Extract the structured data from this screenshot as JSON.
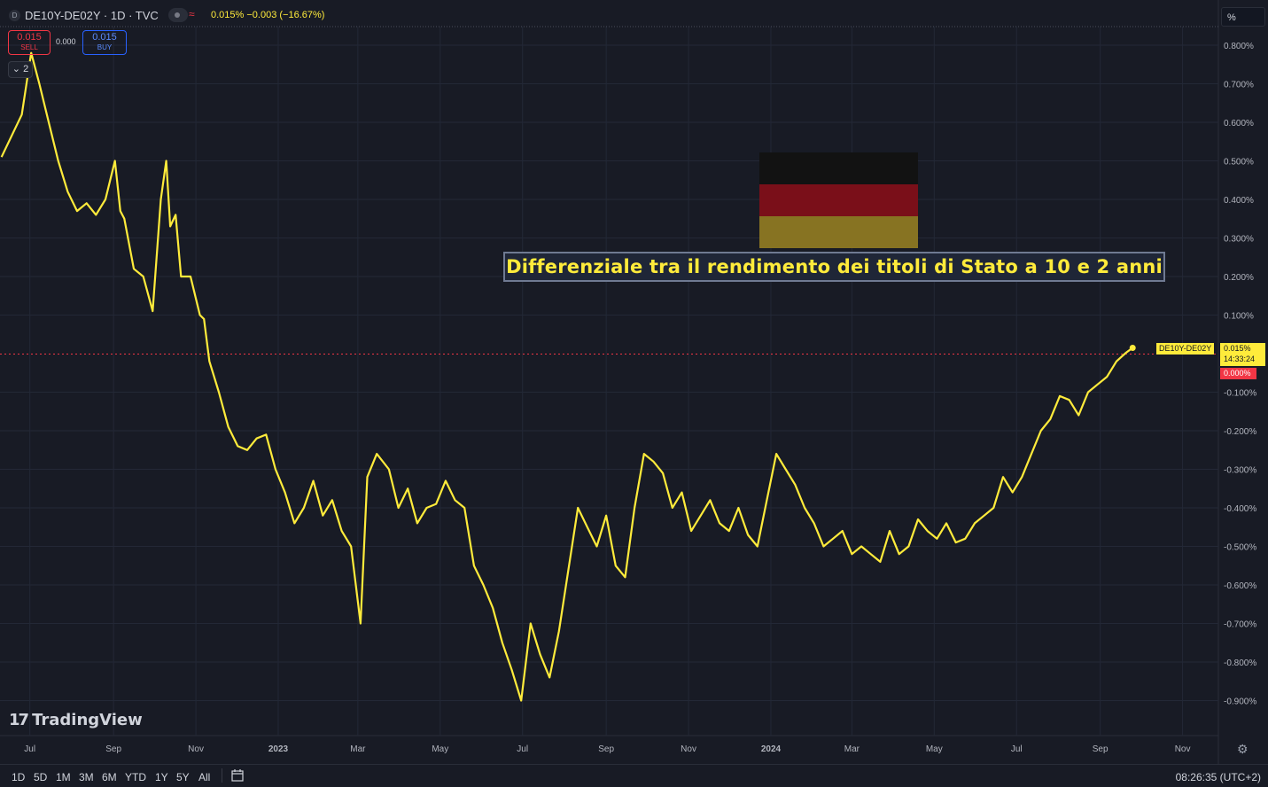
{
  "header": {
    "symbol_badge": "D",
    "symbol_title": "DE10Y-DE02Y · 1D · TVC",
    "ohlc": "0.015% −0.003 (−16.67%)",
    "eye_icon": "eye-icon",
    "wave_icon": "data-wave-icon"
  },
  "trade": {
    "sell_value": "0.015",
    "sell_label": "SELL",
    "spread": "0.000",
    "buy_value": "0.015",
    "buy_label": "BUY"
  },
  "collapse_label": "2",
  "unit_button": "%",
  "annotation": "Differenziale tra il rendimento dei titoli di Stato a 10 e 2 anni",
  "flag_colors": [
    "#121212",
    "#7a0f19",
    "#877322"
  ],
  "price_tags": {
    "symbol": "DE10Y-DE02Y",
    "price": "0.015%",
    "countdown": "14:33:24",
    "zero": "0.000%"
  },
  "logo": {
    "mark": "17",
    "text": "TradingView"
  },
  "bottom": {
    "ranges": [
      "1D",
      "5D",
      "1M",
      "3M",
      "6M",
      "YTD",
      "1Y",
      "5Y",
      "All"
    ],
    "clock": "08:26:35 (UTC+2)"
  },
  "colors": {
    "line": "#ffeb3b",
    "background": "#181b25",
    "grid": "#252a36",
    "sell": "#f23645",
    "buy": "#2962ff"
  },
  "chart_data": {
    "type": "line",
    "series": [
      {
        "name": "DE10Y-DE02Y",
        "x": [
          "2022-06-10",
          "2022-06-25",
          "2022-07-02",
          "2022-07-08",
          "2022-07-15",
          "2022-07-22",
          "2022-07-29",
          "2022-08-05",
          "2022-08-12",
          "2022-08-19",
          "2022-08-26",
          "2022-09-02",
          "2022-09-06",
          "2022-09-09",
          "2022-09-16",
          "2022-09-23",
          "2022-09-30",
          "2022-10-06",
          "2022-10-10",
          "2022-10-13",
          "2022-10-17",
          "2022-10-21",
          "2022-10-28",
          "2022-11-04",
          "2022-11-07",
          "2022-11-11",
          "2022-11-18",
          "2022-11-25",
          "2022-12-02",
          "2022-12-09",
          "2022-12-16",
          "2022-12-23",
          "2022-12-30",
          "2023-01-06",
          "2023-01-13",
          "2023-01-20",
          "2023-01-27",
          "2023-02-03",
          "2023-02-10",
          "2023-02-17",
          "2023-02-24",
          "2023-03-03",
          "2023-03-08",
          "2023-03-15",
          "2023-03-24",
          "2023-03-31",
          "2023-04-07",
          "2023-04-14",
          "2023-04-21",
          "2023-04-28",
          "2023-05-05",
          "2023-05-12",
          "2023-05-19",
          "2023-05-26",
          "2023-06-02",
          "2023-06-09",
          "2023-06-16",
          "2023-06-23",
          "2023-06-30",
          "2023-07-07",
          "2023-07-14",
          "2023-07-21",
          "2023-07-28",
          "2023-08-04",
          "2023-08-11",
          "2023-08-18",
          "2023-08-25",
          "2023-09-01",
          "2023-09-08",
          "2023-09-15",
          "2023-09-22",
          "2023-09-29",
          "2023-10-06",
          "2023-10-13",
          "2023-10-20",
          "2023-10-27",
          "2023-11-03",
          "2023-11-10",
          "2023-11-17",
          "2023-11-24",
          "2023-12-01",
          "2023-12-08",
          "2023-12-15",
          "2023-12-22",
          "2023-12-29",
          "2024-01-05",
          "2024-01-12",
          "2024-01-19",
          "2024-01-26",
          "2024-02-02",
          "2024-02-09",
          "2024-02-16",
          "2024-02-23",
          "2024-03-01",
          "2024-03-08",
          "2024-03-15",
          "2024-03-22",
          "2024-03-29",
          "2024-04-05",
          "2024-04-12",
          "2024-04-19",
          "2024-04-26",
          "2024-05-03",
          "2024-05-10",
          "2024-05-17",
          "2024-05-24",
          "2024-05-31",
          "2024-06-07",
          "2024-06-14",
          "2024-06-21",
          "2024-06-28",
          "2024-07-05",
          "2024-07-12",
          "2024-07-19",
          "2024-07-26",
          "2024-08-02",
          "2024-08-09",
          "2024-08-16",
          "2024-08-23",
          "2024-08-30",
          "2024-09-06",
          "2024-09-13",
          "2024-09-20",
          "2024-09-25"
        ],
        "values": [
          0.51,
          0.62,
          0.78,
          0.7,
          0.6,
          0.5,
          0.42,
          0.37,
          0.39,
          0.36,
          0.4,
          0.5,
          0.37,
          0.35,
          0.22,
          0.2,
          0.11,
          0.4,
          0.5,
          0.33,
          0.36,
          0.2,
          0.2,
          0.1,
          0.09,
          -0.02,
          -0.1,
          -0.19,
          -0.24,
          -0.25,
          -0.22,
          -0.21,
          -0.3,
          -0.36,
          -0.44,
          -0.4,
          -0.33,
          -0.42,
          -0.38,
          -0.46,
          -0.5,
          -0.7,
          -0.32,
          -0.26,
          -0.3,
          -0.4,
          -0.35,
          -0.44,
          -0.4,
          -0.39,
          -0.33,
          -0.38,
          -0.4,
          -0.55,
          -0.6,
          -0.66,
          -0.75,
          -0.82,
          -0.9,
          -0.7,
          -0.78,
          -0.84,
          -0.72,
          -0.56,
          -0.4,
          -0.45,
          -0.5,
          -0.42,
          -0.55,
          -0.58,
          -0.4,
          -0.26,
          -0.28,
          -0.31,
          -0.4,
          -0.36,
          -0.46,
          -0.42,
          -0.38,
          -0.44,
          -0.46,
          -0.4,
          -0.47,
          -0.5,
          -0.38,
          -0.26,
          -0.3,
          -0.34,
          -0.4,
          -0.44,
          -0.5,
          -0.48,
          -0.46,
          -0.52,
          -0.5,
          -0.52,
          -0.54,
          -0.46,
          -0.52,
          -0.5,
          -0.43,
          -0.46,
          -0.48,
          -0.44,
          -0.49,
          -0.48,
          -0.44,
          -0.42,
          -0.4,
          -0.32,
          -0.36,
          -0.32,
          -0.26,
          -0.2,
          -0.17,
          -0.11,
          -0.12,
          -0.16,
          -0.1,
          -0.08,
          -0.06,
          -0.02,
          0.002,
          0.015
        ]
      }
    ],
    "x_ticks": [
      "Jul",
      "Sep",
      "Nov",
      "2023",
      "Mar",
      "May",
      "Jul",
      "Sep",
      "Nov",
      "2024",
      "Mar",
      "May",
      "Jul",
      "Sep",
      "Nov"
    ],
    "y_ticks": [
      "0.800%",
      "0.700%",
      "0.600%",
      "0.500%",
      "0.400%",
      "0.300%",
      "0.200%",
      "0.100%",
      "-0.100%",
      "-0.200%",
      "-0.300%",
      "-0.400%",
      "-0.500%",
      "-0.600%",
      "-0.700%",
      "-0.800%",
      "-0.900%"
    ],
    "ylim": [
      -0.9,
      0.8
    ],
    "last_value": 0.015,
    "grid": true
  }
}
